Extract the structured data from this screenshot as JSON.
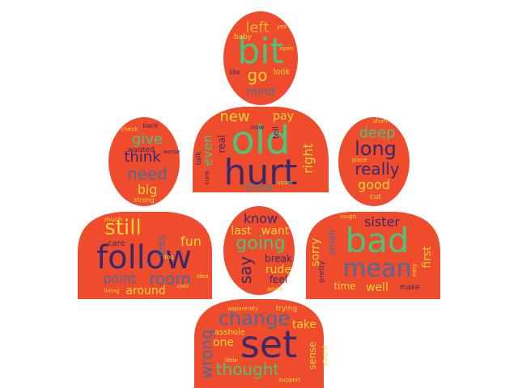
{
  "colors": {
    "shape_fill": "#ee4c2c",
    "background": "#ffffff",
    "palette": {
      "navy": "#3a2a6b",
      "green": "#4cc27a",
      "yellow": "#f1d43a",
      "lightgreen": "#a8d86a",
      "teal": "#3a8e9c",
      "slate": "#4c6a9a",
      "purple": "#5a3a8a",
      "gold": "#e0b232"
    }
  },
  "icon": "people-group-icon",
  "words": {
    "old": "old",
    "hurt": "hurt",
    "bit": "bit",
    "left": "left",
    "go": "go",
    "mind": "mind",
    "baby": "baby",
    "yes": "yes",
    "open": "open",
    "look": "look",
    "like": "like",
    "new": "new",
    "pay": "pay",
    "even": "even",
    "real": "real",
    "tell": "tell",
    "right": "right",
    "friend": "friend",
    "talk": "talk",
    "sure": "sure",
    "upset": "upset",
    "now": "now",
    "give": "give",
    "think": "think",
    "need": "need",
    "big": "big",
    "strong": "strong",
    "wanted": "wanted",
    "worse": "worse",
    "back": "back",
    "check": "check",
    "long": "long",
    "deep": "deep",
    "really": "really",
    "good": "good",
    "cut": "cut",
    "place": "place",
    "short": "short",
    "still": "still",
    "follow": "follow",
    "room": "room",
    "point": "point",
    "around": "around",
    "fun": "fun",
    "less": "less",
    "care": "care",
    "much": "much",
    "dog": "dog",
    "living": "living",
    "cool": "cool",
    "idea": "idea",
    "know": "know",
    "want": "want",
    "last": "last",
    "going": "going",
    "say": "say",
    "rude": "rude",
    "break": "break",
    "feel": "feel",
    "white": "white",
    "bad": "bad",
    "mean": "mean",
    "sister": "sister",
    "sorry": "sorry",
    "small": "small",
    "first": "first",
    "time": "time",
    "well": "well",
    "pretty": "pretty",
    "make": "make",
    "rough": "rough",
    "easy": "easy",
    "set": "set",
    "change": "change",
    "take": "take",
    "wrong": "wrong",
    "one": "one",
    "thought": "thought",
    "sense": "sense",
    "asshole": "asshole",
    "trying": "trying",
    "apparently": "apparently",
    "stupid": "stupid",
    "support": "support",
    "little": "little"
  }
}
